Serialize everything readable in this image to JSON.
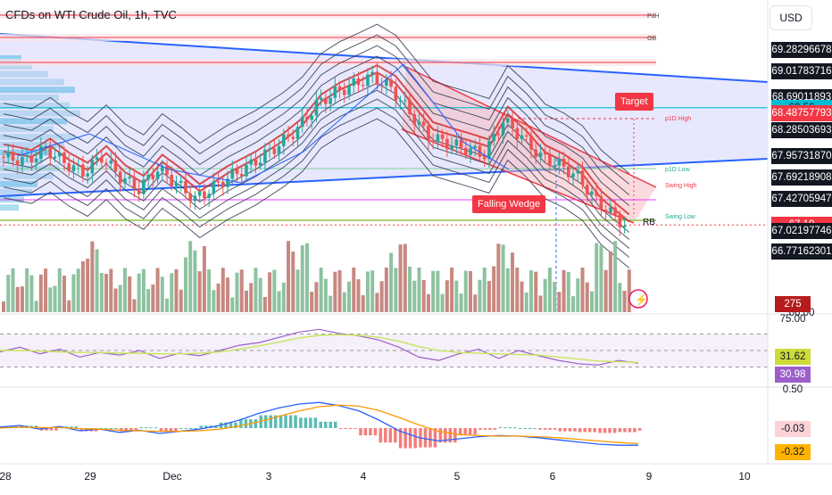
{
  "header": {
    "title": "CFDs on WTI Crude Oil, 1h, TVC",
    "currency_button": "USD"
  },
  "colors": {
    "up": "#26a69a",
    "down": "#ef5350",
    "vol_up": "#8ec2a0",
    "vol_down": "#c78880",
    "wedge_blue": "#2962ff",
    "channel_red": "#f23645",
    "rsi": "#9c5fc9",
    "rsi_ma": "#c8e65a",
    "macd": "#2962ff",
    "signal": "#ff9800"
  },
  "price_scale": {
    "labels": [
      {
        "text": "69.28296678",
        "style": "dark",
        "y": 69.283
      },
      {
        "text": "69.01783716",
        "style": "dark",
        "y": 69.018
      },
      {
        "text": "68.69011893",
        "style": "dark",
        "y": 68.69
      },
      {
        "text": "68.56",
        "style": "teal",
        "y": 68.56
      },
      {
        "text": "68.48757793",
        "style": "red",
        "y": 68.488
      },
      {
        "text": "68.28503693",
        "style": "dark",
        "y": 68.285
      },
      {
        "text": "67.95731870",
        "style": "dark",
        "y": 67.957
      },
      {
        "text": "67.69218908",
        "style": "dark",
        "y": 67.692
      },
      {
        "text": "67.42705947",
        "style": "dark",
        "y": 67.427
      },
      {
        "text": "67.10",
        "style": "red",
        "y": 67.1
      },
      {
        "text": "67.02197746",
        "style": "dark",
        "y": 67.022
      },
      {
        "text": "66.77162301",
        "style": "dark",
        "y": 66.772
      },
      {
        "text": "66.00",
        "style": "plain",
        "y": 66.0
      }
    ],
    "volume_label": "275",
    "rsi_labels": [
      "75.00",
      "31.62",
      "30.98",
      "0.50"
    ],
    "macd_labels": [
      "-0.03",
      "-0.32"
    ]
  },
  "time_axis": [
    "28",
    "29",
    "Dec",
    "3",
    "4",
    "5",
    "6",
    "9",
    "10"
  ],
  "annotations": {
    "target": "Target",
    "falling_wedge": "Falling Wedge",
    "rb": "RB",
    "p1d_high": "p1D High",
    "p1d_low": "p1D Low",
    "swing_high": "Swing High",
    "swing_low": "Swing Low",
    "pdh": "PdH",
    "ob": "OB"
  },
  "chart_data": [
    {
      "type": "candlestick",
      "title": "CFDs on WTI Crude Oil, 1h, TVC",
      "x_labels": [
        "28",
        "29",
        "Dec",
        "3",
        "4",
        "5",
        "6",
        "9",
        "10"
      ],
      "ylim": [
        66.77,
        69.28
      ],
      "close_path": [
        {
          "x": 0,
          "y": 67.95
        },
        {
          "x": 6,
          "y": 67.9
        },
        {
          "x": 10,
          "y": 68.05
        },
        {
          "x": 14,
          "y": 67.88
        },
        {
          "x": 18,
          "y": 67.75
        },
        {
          "x": 22,
          "y": 67.95
        },
        {
          "x": 26,
          "y": 67.7
        },
        {
          "x": 30,
          "y": 67.55
        },
        {
          "x": 34,
          "y": 67.8
        },
        {
          "x": 38,
          "y": 67.62
        },
        {
          "x": 42,
          "y": 67.42
        },
        {
          "x": 48,
          "y": 67.65
        },
        {
          "x": 54,
          "y": 67.85
        },
        {
          "x": 60,
          "y": 68.1
        },
        {
          "x": 64,
          "y": 68.3
        },
        {
          "x": 68,
          "y": 68.6
        },
        {
          "x": 72,
          "y": 68.75
        },
        {
          "x": 76,
          "y": 68.85
        },
        {
          "x": 80,
          "y": 68.95
        },
        {
          "x": 84,
          "y": 68.8
        },
        {
          "x": 88,
          "y": 68.5
        },
        {
          "x": 92,
          "y": 68.2
        },
        {
          "x": 96,
          "y": 68.12
        },
        {
          "x": 100,
          "y": 68.05
        },
        {
          "x": 104,
          "y": 67.98
        },
        {
          "x": 108,
          "y": 68.4
        },
        {
          "x": 112,
          "y": 68.2
        },
        {
          "x": 116,
          "y": 67.95
        },
        {
          "x": 120,
          "y": 67.85
        },
        {
          "x": 124,
          "y": 67.7
        },
        {
          "x": 128,
          "y": 67.4
        },
        {
          "x": 132,
          "y": 67.2
        },
        {
          "x": 134,
          "y": 67.1
        }
      ],
      "last_price": 67.1,
      "bid": 68.56
    },
    {
      "type": "bar",
      "title": "Volume",
      "last_value": 275
    },
    {
      "type": "line",
      "title": "RSI",
      "ylim": [
        0,
        100
      ],
      "levels": [
        75,
        50,
        25
      ],
      "series": [
        {
          "values": [
            48,
            55,
            45,
            52,
            40,
            47,
            43,
            50,
            38,
            46,
            42,
            50,
            58,
            62,
            70,
            78,
            82,
            76,
            72,
            66,
            55,
            40,
            35,
            45,
            52,
            38,
            50,
            42,
            35,
            30,
            28,
            35,
            31
          ]
        },
        {
          "values": [
            50,
            50,
            49,
            48,
            47,
            47,
            46,
            46,
            45,
            45,
            46,
            48,
            52,
            57,
            63,
            69,
            73,
            74,
            73,
            70,
            64,
            56,
            50,
            47,
            46,
            45,
            44,
            43,
            40,
            37,
            34,
            33,
            32
          ]
        }
      ],
      "last_values": [
        30.98,
        31.62
      ]
    },
    {
      "type": "line",
      "title": "MACD",
      "series": [
        {
          "values": [
            0.02,
            0.05,
            -0.02,
            0.03,
            -0.05,
            -0.02,
            -0.08,
            -0.04,
            -0.1,
            -0.06,
            -0.02,
            0.05,
            0.15,
            0.28,
            0.38,
            0.45,
            0.48,
            0.42,
            0.32,
            0.15,
            -0.05,
            -0.18,
            -0.24,
            -0.2,
            -0.16,
            -0.14,
            -0.15,
            -0.18,
            -0.22,
            -0.26,
            -0.3,
            -0.32,
            -0.32
          ]
        },
        {
          "values": [
            0.0,
            0.02,
            0.01,
            0.01,
            -0.01,
            -0.02,
            -0.04,
            -0.05,
            -0.06,
            -0.06,
            -0.05,
            -0.02,
            0.04,
            0.12,
            0.22,
            0.32,
            0.4,
            0.43,
            0.41,
            0.33,
            0.2,
            0.06,
            -0.06,
            -0.12,
            -0.14,
            -0.15,
            -0.15,
            -0.16,
            -0.18,
            -0.21,
            -0.24,
            -0.27,
            -0.29
          ]
        }
      ],
      "last_values": [
        -0.03,
        -0.32
      ]
    }
  ]
}
